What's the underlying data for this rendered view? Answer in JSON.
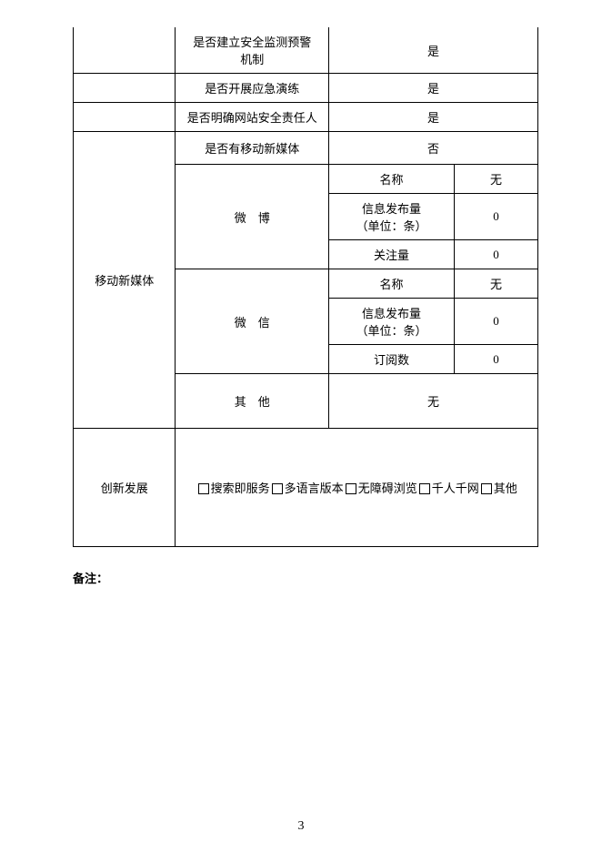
{
  "table": {
    "security": {
      "monitoring_label": "是否建立安全监测预警\n机制",
      "monitoring_value": "是",
      "drill_label": "是否开展应急演练",
      "drill_value": "是",
      "responsible_label": "是否明确网站安全责任人",
      "responsible_value": "是"
    },
    "mobile": {
      "section_label": "移动新媒体",
      "has_mobile_label": "是否有移动新媒体",
      "has_mobile_value": "否",
      "weibo": {
        "label": "微　博",
        "name_label": "名称",
        "name_value": "无",
        "posts_label": "信息发布量\n（单位：条）",
        "posts_value": "0",
        "followers_label": "关注量",
        "followers_value": "0"
      },
      "wechat": {
        "label": "微　信",
        "name_label": "名称",
        "name_value": "无",
        "posts_label": "信息发布量\n（单位：条）",
        "posts_value": "0",
        "subs_label": "订阅数",
        "subs_value": "0"
      },
      "other_label": "其　他",
      "other_value": "无"
    },
    "innovation": {
      "section_label": "创新发展",
      "options": {
        "search": "搜索即服务",
        "multilang": "多语言版本",
        "barrier_free": "无障碍浏览",
        "qianren": "千人千网",
        "other": "其他"
      }
    }
  },
  "note_label": "备注：",
  "page_number": "3",
  "colors": {
    "border": "#000000",
    "background": "#ffffff",
    "text": "#000000"
  },
  "fontsize": 13
}
